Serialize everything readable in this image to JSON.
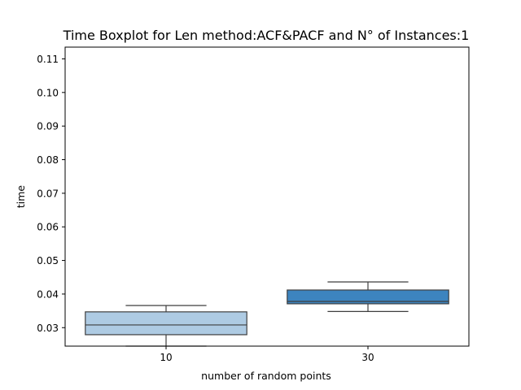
{
  "chart_data": {
    "type": "boxplot",
    "title": "Time Boxplot for Len method:ACF&PACF and N° of Instances:1",
    "xlabel": "number of random points",
    "ylabel": "time",
    "categories": [
      "10",
      "30"
    ],
    "ylim": [
      0.0245,
      0.1135
    ],
    "yticks": [
      "0.03",
      "0.04",
      "0.05",
      "0.06",
      "0.07",
      "0.08",
      "0.09",
      "0.10",
      "0.11"
    ],
    "ytick_values": [
      0.03,
      0.04,
      0.05,
      0.06,
      0.07,
      0.08,
      0.09,
      0.1,
      0.11
    ],
    "boxes": [
      {
        "category": "10",
        "whisker_low": 0.0245,
        "q1": 0.0279,
        "median": 0.0308,
        "q3": 0.0347,
        "whisker_high": 0.0366,
        "color": "#aecbe3"
      },
      {
        "category": "30",
        "whisker_low": 0.0348,
        "q1": 0.0371,
        "median": 0.0378,
        "q3": 0.0412,
        "whisker_high": 0.0436,
        "color": "#3d84bf"
      }
    ],
    "grid": false,
    "legend": "none"
  }
}
